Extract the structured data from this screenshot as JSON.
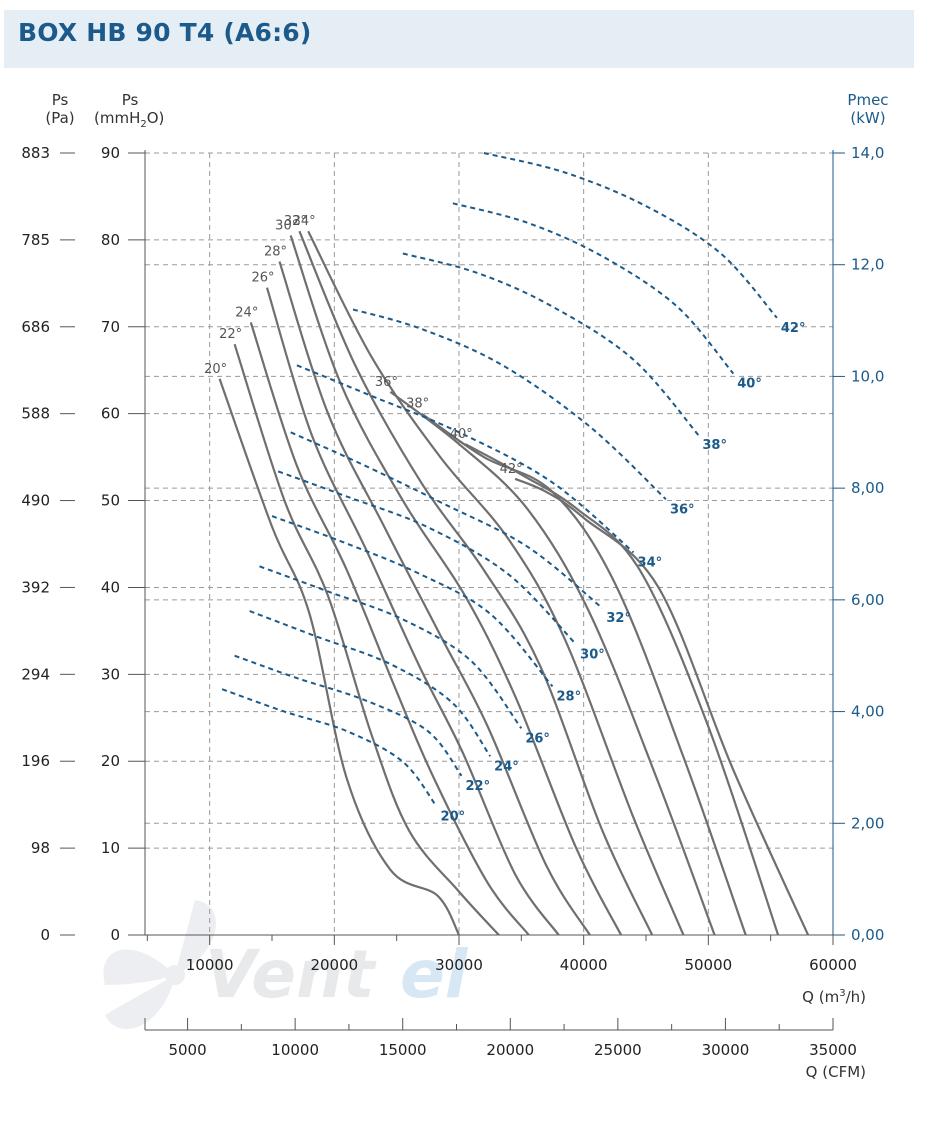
{
  "title": "BOX HB 90 T4 (A6:6)",
  "axes_labels": {
    "pa_name": "Ps",
    "pa_unit": "(Pa)",
    "mm_name": "Ps",
    "mm_unit_a": "(mmH",
    "mm_unit_sub": "2",
    "mm_unit_b": "O)",
    "pmec_name": "Pmec",
    "pmec_unit": "(kW)",
    "q_m3h_a": "Q (m",
    "q_m3h_sup": "3",
    "q_m3h_b": "/h)",
    "q_cfm": "Q (CFM)"
  },
  "watermark": {
    "text_a": "Vent",
    "text_b": "el"
  },
  "colors": {
    "pressure_curve": "#6f6f6f",
    "power_curve": "#1b5a8a",
    "grid": "#9a9a9a",
    "title_bg": "#e6eef5",
    "title_text": "#1b5a8a"
  },
  "chart_data": {
    "type": "line",
    "title": "BOX HB 90 T4 (A6:6)",
    "x_range_m3h": [
      0,
      60000
    ],
    "x_ticks_m3h": [
      "10000",
      "20000",
      "30000",
      "40000",
      "50000",
      "60000"
    ],
    "x_ticks_cfm": [
      "5000",
      "10000",
      "15000",
      "20000",
      "25000",
      "30000",
      "35000"
    ],
    "y_range_mmH2O": [
      0,
      90
    ],
    "y_ticks_mmH2O": [
      "0",
      "10",
      "20",
      "30",
      "40",
      "50",
      "60",
      "70",
      "80",
      "90"
    ],
    "y_ticks_pa": [
      "0",
      "98",
      "196",
      "294",
      "392",
      "490",
      "588",
      "686",
      "785",
      "883"
    ],
    "y_range_kw": [
      0,
      14
    ],
    "y_ticks_kw": [
      "0,00",
      "2,00",
      "4,00",
      "6,00",
      "8,00",
      "10,0",
      "12,0",
      "14,0"
    ],
    "grid": true,
    "pressure_series": [
      {
        "name": "20°",
        "points": [
          [
            10800,
            64
          ],
          [
            15000,
            47
          ],
          [
            18000,
            37
          ],
          [
            21000,
            18
          ],
          [
            24500,
            7.5
          ],
          [
            28300,
            4.5
          ],
          [
            30000,
            0
          ]
        ]
      },
      {
        "name": "22°",
        "points": [
          [
            12000,
            68
          ],
          [
            16000,
            50
          ],
          [
            19500,
            39
          ],
          [
            23000,
            23
          ],
          [
            26000,
            12
          ],
          [
            30000,
            5
          ],
          [
            33200,
            0
          ]
        ]
      },
      {
        "name": "24°",
        "points": [
          [
            13300,
            70.5
          ],
          [
            17000,
            54
          ],
          [
            21000,
            42
          ],
          [
            25000,
            28
          ],
          [
            28000,
            18
          ],
          [
            32300,
            6
          ],
          [
            35600,
            0
          ]
        ]
      },
      {
        "name": "26°",
        "points": [
          [
            14600,
            74.5
          ],
          [
            18200,
            57.5
          ],
          [
            22500,
            44.5
          ],
          [
            26800,
            31
          ],
          [
            30300,
            21
          ],
          [
            34500,
            7
          ],
          [
            38000,
            0
          ]
        ]
      },
      {
        "name": "28°",
        "points": [
          [
            15600,
            77.5
          ],
          [
            19500,
            60
          ],
          [
            24000,
            47
          ],
          [
            28500,
            34.5
          ],
          [
            32300,
            24
          ],
          [
            37000,
            8
          ],
          [
            40500,
            0
          ]
        ]
      },
      {
        "name": "30°",
        "points": [
          [
            16500,
            80.5
          ],
          [
            20500,
            63.5
          ],
          [
            25500,
            50
          ],
          [
            30500,
            39
          ],
          [
            34500,
            27.5
          ],
          [
            39400,
            10
          ],
          [
            43000,
            0
          ]
        ]
      },
      {
        "name": "32°",
        "points": [
          [
            17200,
            81
          ],
          [
            21700,
            65.5
          ],
          [
            27000,
            52
          ],
          [
            32000,
            42
          ],
          [
            36500,
            31
          ],
          [
            41500,
            12
          ],
          [
            45500,
            0
          ]
        ]
      },
      {
        "name": "34°",
        "points": [
          [
            17900,
            81
          ],
          [
            23000,
            66.5
          ],
          [
            28500,
            55
          ],
          [
            34000,
            45.5
          ],
          [
            38500,
            34
          ],
          [
            44000,
            13.5
          ],
          [
            48000,
            0
          ]
        ]
      },
      {
        "name": "36°",
        "points": [
          [
            24500,
            62.5
          ],
          [
            30000,
            56.5
          ],
          [
            35500,
            49
          ],
          [
            40500,
            37
          ],
          [
            46000,
            17.5
          ],
          [
            50500,
            0
          ]
        ]
      },
      {
        "name": "38°",
        "points": [
          [
            27000,
            60
          ],
          [
            32000,
            55
          ],
          [
            37500,
            51
          ],
          [
            42500,
            40.5
          ],
          [
            48000,
            20.5
          ],
          [
            53000,
            0
          ]
        ]
      },
      {
        "name": "40°",
        "points": [
          [
            30500,
            56.5
          ],
          [
            35000,
            53
          ],
          [
            39500,
            49
          ],
          [
            44500,
            42
          ],
          [
            50000,
            24
          ],
          [
            55600,
            0
          ]
        ]
      },
      {
        "name": "42°",
        "points": [
          [
            34500,
            52.5
          ],
          [
            37000,
            51
          ],
          [
            40000,
            48
          ],
          [
            46000,
            40
          ],
          [
            52000,
            19
          ],
          [
            58000,
            0
          ]
        ]
      }
    ],
    "power_series": [
      {
        "name": "20°",
        "points": [
          [
            11000,
            4.4
          ],
          [
            16000,
            4.0
          ],
          [
            21000,
            3.65
          ],
          [
            25500,
            3.1
          ],
          [
            28200,
            2.3
          ]
        ]
      },
      {
        "name": "22°",
        "points": [
          [
            12000,
            5.0
          ],
          [
            17000,
            4.6
          ],
          [
            22500,
            4.2
          ],
          [
            27500,
            3.65
          ],
          [
            30200,
            2.85
          ]
        ]
      },
      {
        "name": "24°",
        "points": [
          [
            13200,
            5.8
          ],
          [
            18500,
            5.35
          ],
          [
            24500,
            4.85
          ],
          [
            29500,
            4.15
          ],
          [
            32500,
            3.2
          ]
        ]
      },
      {
        "name": "26°",
        "points": [
          [
            14000,
            6.6
          ],
          [
            19500,
            6.15
          ],
          [
            25500,
            5.65
          ],
          [
            31000,
            4.9
          ],
          [
            35000,
            3.7
          ]
        ]
      },
      {
        "name": "28°",
        "points": [
          [
            15000,
            7.5
          ],
          [
            20500,
            7.05
          ],
          [
            26500,
            6.5
          ],
          [
            32500,
            5.75
          ],
          [
            37500,
            4.45
          ]
        ]
      },
      {
        "name": "30°",
        "points": [
          [
            15500,
            8.3
          ],
          [
            21000,
            7.85
          ],
          [
            27500,
            7.3
          ],
          [
            34000,
            6.45
          ],
          [
            39400,
            5.2
          ]
        ]
      },
      {
        "name": "32°",
        "points": [
          [
            16500,
            9.0
          ],
          [
            22000,
            8.45
          ],
          [
            28500,
            7.75
          ],
          [
            35500,
            6.95
          ],
          [
            41500,
            5.85
          ]
        ]
      },
      {
        "name": "34°",
        "points": [
          [
            17000,
            10.2
          ],
          [
            23000,
            9.65
          ],
          [
            30000,
            9.0
          ],
          [
            37500,
            8.1
          ],
          [
            44000,
            6.85
          ]
        ]
      },
      {
        "name": "36°",
        "points": [
          [
            21500,
            11.2
          ],
          [
            27000,
            10.85
          ],
          [
            33500,
            10.2
          ],
          [
            40500,
            9.1
          ],
          [
            46600,
            7.8
          ]
        ]
      },
      {
        "name": "38°",
        "points": [
          [
            25500,
            12.2
          ],
          [
            31500,
            11.85
          ],
          [
            37500,
            11.25
          ],
          [
            44000,
            10.3
          ],
          [
            49200,
            8.95
          ]
        ]
      },
      {
        "name": "40°",
        "points": [
          [
            29500,
            13.1
          ],
          [
            35500,
            12.75
          ],
          [
            41500,
            12.15
          ],
          [
            47500,
            11.25
          ],
          [
            52000,
            10.05
          ]
        ]
      },
      {
        "name": "42°",
        "points": [
          [
            32000,
            14.0
          ],
          [
            38500,
            13.65
          ],
          [
            45000,
            13.05
          ],
          [
            51000,
            12.2
          ],
          [
            55500,
            11.05
          ]
        ]
      }
    ]
  }
}
